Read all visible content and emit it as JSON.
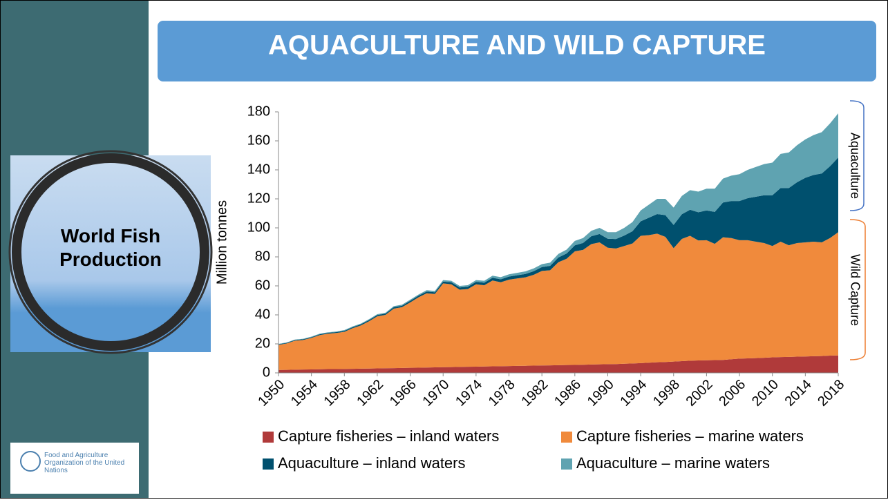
{
  "slide": {
    "title": "AQUACULTURE AND WILD CAPTURE",
    "badge": "World Fish Production",
    "logo": "Food and Agriculture Organization of the United Nations"
  },
  "chart_data": {
    "type": "stacked_area",
    "y_label": "Million tonnes",
    "annotations": [
      "Aquaculture",
      "Wild Capture"
    ],
    "x": [
      1950,
      1951,
      1952,
      1953,
      1954,
      1955,
      1956,
      1957,
      1958,
      1959,
      1960,
      1961,
      1962,
      1963,
      1964,
      1965,
      1966,
      1967,
      1968,
      1969,
      1970,
      1971,
      1972,
      1973,
      1974,
      1975,
      1976,
      1977,
      1978,
      1979,
      1980,
      1981,
      1982,
      1983,
      1984,
      1985,
      1986,
      1987,
      1988,
      1989,
      1990,
      1991,
      1992,
      1993,
      1994,
      1995,
      1996,
      1997,
      1998,
      1999,
      2000,
      2001,
      2002,
      2003,
      2004,
      2005,
      2006,
      2007,
      2008,
      2009,
      2010,
      2011,
      2012,
      2013,
      2014,
      2015,
      2016,
      2017,
      2018
    ],
    "xlim": [
      1950,
      2018
    ],
    "xticks": [
      1950,
      1954,
      1958,
      1962,
      1966,
      1970,
      1974,
      1978,
      1982,
      1986,
      1990,
      1994,
      1998,
      2002,
      2006,
      2010,
      2014,
      2018
    ],
    "ylim": [
      0,
      180
    ],
    "yticks": [
      0,
      20,
      40,
      60,
      80,
      100,
      120,
      140,
      160,
      180
    ],
    "grid": false,
    "series": [
      {
        "name": "Capture fisheries – inland waters",
        "color": "#b03a3a",
        "values": [
          2.0,
          2.1,
          2.2,
          2.3,
          2.4,
          2.5,
          2.6,
          2.6,
          2.7,
          2.8,
          2.9,
          3.0,
          3.1,
          3.2,
          3.3,
          3.4,
          3.5,
          3.6,
          3.7,
          3.8,
          3.9,
          4.0,
          4.1,
          4.2,
          4.3,
          4.4,
          4.5,
          4.6,
          4.7,
          4.8,
          4.9,
          5.0,
          5.1,
          5.2,
          5.3,
          5.4,
          5.5,
          5.6,
          5.8,
          5.9,
          6.0,
          6.1,
          6.3,
          6.5,
          6.7,
          7.0,
          7.3,
          7.5,
          7.8,
          8.1,
          8.4,
          8.6,
          8.7,
          8.8,
          8.9,
          9.4,
          9.8,
          10.0,
          10.2,
          10.4,
          10.7,
          10.9,
          11.0,
          11.2,
          11.3,
          11.5,
          11.6,
          11.9,
          12.0
        ]
      },
      {
        "name": "Capture fisheries – marine waters",
        "color": "#f08a3c",
        "values": [
          17.3,
          18.2,
          20.0,
          20.4,
          21.7,
          23.5,
          24.4,
          24.9,
          25.6,
          28.0,
          29.8,
          32.6,
          35.9,
          36.8,
          41.0,
          41.9,
          45.1,
          48.5,
          51.2,
          50.6,
          57.8,
          57.1,
          53.3,
          53.6,
          56.8,
          56.0,
          59.2,
          57.9,
          59.6,
          60.3,
          61.0,
          62.6,
          65.2,
          65.6,
          71.0,
          73.3,
          78.3,
          79.2,
          83.0,
          84.1,
          80.3,
          79.7,
          81.2,
          82.7,
          87.8,
          88.0,
          88.7,
          86.3,
          78.2,
          84.3,
          86.1,
          82.7,
          82.8,
          80.2,
          84.6,
          83.6,
          81.7,
          81.5,
          80.3,
          79.1,
          76.8,
          79.6,
          77.0,
          78.3,
          78.7,
          79.0,
          78.4,
          81.1,
          85.0
        ]
      },
      {
        "name": "Aquaculture – inland waters",
        "color": "#00506e",
        "values": [
          0.4,
          0.4,
          0.5,
          0.5,
          0.5,
          0.6,
          0.6,
          0.6,
          0.7,
          0.7,
          0.8,
          0.8,
          0.9,
          0.9,
          1.0,
          1.0,
          1.1,
          1.1,
          1.2,
          1.2,
          1.3,
          1.4,
          1.5,
          1.6,
          1.7,
          1.8,
          1.9,
          2.0,
          2.1,
          2.2,
          2.3,
          2.5,
          2.7,
          3.0,
          3.3,
          3.6,
          4.2,
          4.8,
          5.4,
          5.8,
          6.2,
          6.5,
          7.2,
          8.5,
          10.0,
          12.0,
          13.5,
          15.0,
          16.0,
          17.0,
          18.0,
          19.5,
          20.5,
          22.0,
          24.0,
          25.5,
          27.0,
          29.0,
          31.0,
          33.0,
          35.0,
          37.0,
          39.5,
          42.0,
          44.5,
          46.0,
          47.5,
          49.5,
          51.5
        ]
      },
      {
        "name": "Aquaculture – marine waters",
        "color": "#5fa3b1",
        "values": [
          0.3,
          0.3,
          0.3,
          0.3,
          0.4,
          0.4,
          0.4,
          0.4,
          0.5,
          0.5,
          0.5,
          0.6,
          0.6,
          0.6,
          0.7,
          0.7,
          0.8,
          0.8,
          0.9,
          0.9,
          1.0,
          1.0,
          1.1,
          1.1,
          1.2,
          1.3,
          1.4,
          1.5,
          1.6,
          1.7,
          1.8,
          1.9,
          2.0,
          2.2,
          2.4,
          2.7,
          3.0,
          3.4,
          3.8,
          4.2,
          4.5,
          4.7,
          5.3,
          6.3,
          7.5,
          9.0,
          10.5,
          11.2,
          12.0,
          12.6,
          13.5,
          14.2,
          15.0,
          16.0,
          16.5,
          17.5,
          18.5,
          19.5,
          20.5,
          21.5,
          22.5,
          23.5,
          24.5,
          25.5,
          26.5,
          27.5,
          28.5,
          29.5,
          30.5
        ]
      }
    ]
  }
}
